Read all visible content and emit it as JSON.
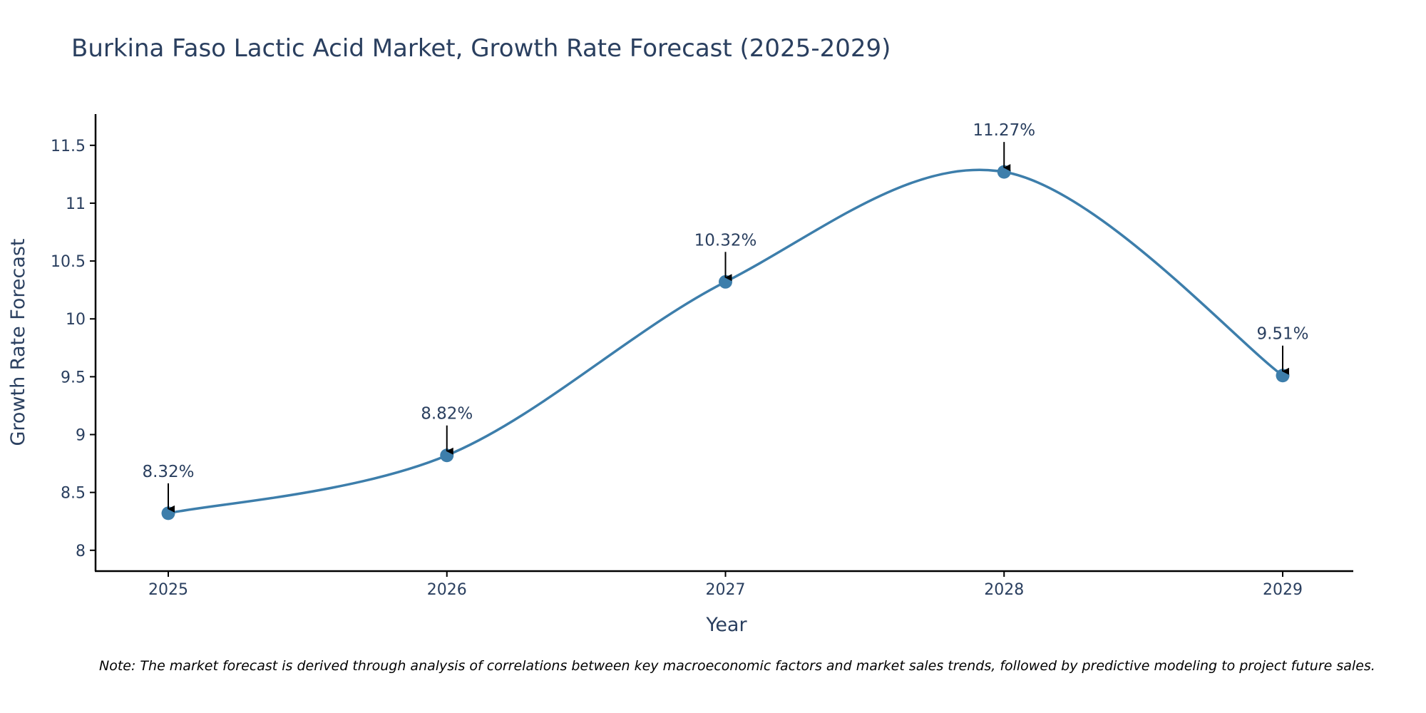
{
  "chart_data": {
    "type": "line",
    "title": "Burkina Faso Lactic Acid Market, Growth Rate Forecast (2025-2029)",
    "xlabel": "Year",
    "ylabel": "Growth Rate Forecast",
    "categories": [
      "2025",
      "2026",
      "2027",
      "2028",
      "2029"
    ],
    "values": [
      8.32,
      8.82,
      10.32,
      11.27,
      9.51
    ],
    "data_labels": [
      "8.32%",
      "8.82%",
      "10.32%",
      "11.27%",
      "9.51%"
    ],
    "y_ticks": [
      8,
      8.5,
      9,
      9.5,
      10,
      10.5,
      11,
      11.5
    ],
    "y_tick_labels": [
      "8",
      "8.5",
      "9",
      "9.5",
      "10",
      "10.5",
      "11",
      "11.5"
    ],
    "ylim": [
      7.82,
      11.77
    ],
    "grid": false,
    "line_shape": "spline",
    "series_color": "#3d7eab",
    "marker_color": "#3d7eab",
    "annotation_arrow_color": "#000000",
    "note": "Note: The market forecast is derived through analysis of correlations between key macroeconomic factors and market sales trends, followed by predictive modeling to project future sales."
  }
}
